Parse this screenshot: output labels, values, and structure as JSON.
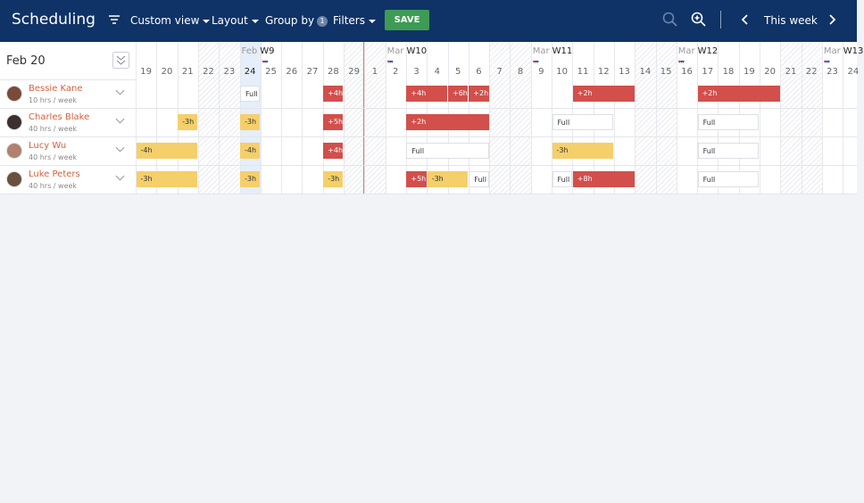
{
  "header": {
    "title": "Scheduling",
    "custom_view": "Custom view",
    "layout": "Layout",
    "group_by": "Group by",
    "group_by_count": "1",
    "filters": "Filters",
    "save": "SAVE",
    "range": "This week"
  },
  "timeline": {
    "date_label": "Feb 20",
    "days": [
      "19",
      "20",
      "21",
      "22",
      "23",
      "24",
      "25",
      "26",
      "27",
      "28",
      "29",
      "1",
      "2",
      "3",
      "4",
      "5",
      "6",
      "7",
      "8",
      "9",
      "10",
      "11",
      "12",
      "13",
      "14",
      "15",
      "16",
      "17",
      "18",
      "19",
      "20",
      "21",
      "22",
      "23",
      "24"
    ],
    "weeks": [
      {
        "month": "Feb",
        "week": "W9"
      },
      {
        "month": "Mar",
        "week": "W10"
      },
      {
        "month": "Mar",
        "week": "W11"
      },
      {
        "month": "Mar",
        "week": "W12"
      },
      {
        "month": "Mar",
        "week": "W13"
      }
    ]
  },
  "people": [
    {
      "name": "Bessie Kane",
      "hours": "10 hrs / week",
      "blocks": [
        "Full",
        "+4h",
        "+4h",
        "+6h",
        "+2h",
        "+2h",
        "+2h"
      ]
    },
    {
      "name": "Charles Blake",
      "hours": "40 hrs / week",
      "blocks": [
        "-3h",
        "-3h",
        "+5h",
        "+2h",
        "Full",
        "Full"
      ]
    },
    {
      "name": "Lucy Wu",
      "hours": "40 hrs / week",
      "blocks": [
        "-4h",
        "-4h",
        "+4h",
        "Full",
        "-3h",
        "Full"
      ]
    },
    {
      "name": "Luke Peters",
      "hours": "40 hrs / week",
      "blocks": [
        "-3h",
        "-3h",
        "-3h",
        "+5h",
        "-3h",
        "Full",
        "Full",
        "+8h",
        "Full"
      ]
    }
  ]
}
